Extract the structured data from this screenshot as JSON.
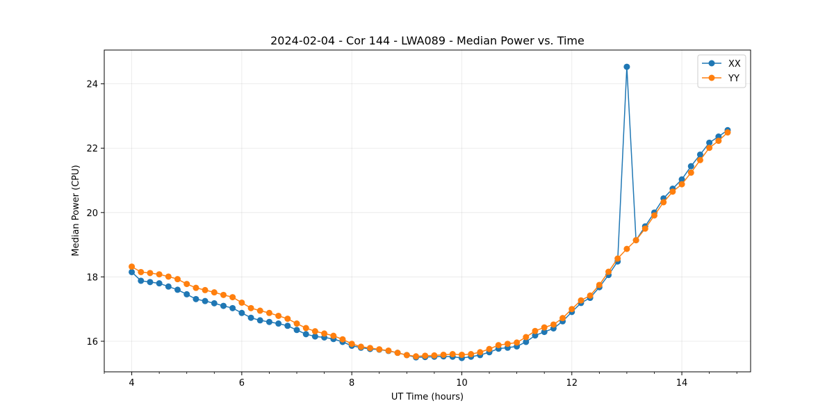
{
  "chart_data": {
    "type": "line",
    "title": "2024-02-04 - Cor 144 - LWA089 - Median Power vs. Time",
    "xlabel": "UT Time (hours)",
    "ylabel": "Median Power (CPU)",
    "xlim": [
      3.5,
      15.25
    ],
    "ylim": [
      15.05,
      25.05
    ],
    "xticks": [
      4,
      6,
      8,
      10,
      12,
      14
    ],
    "yticks": [
      16,
      18,
      20,
      22,
      24
    ],
    "grid": true,
    "legend_position": "top-right",
    "x": [
      4.0,
      4.167,
      4.333,
      4.5,
      4.667,
      4.833,
      5.0,
      5.167,
      5.333,
      5.5,
      5.667,
      5.833,
      6.0,
      6.167,
      6.333,
      6.5,
      6.667,
      6.833,
      7.0,
      7.167,
      7.333,
      7.5,
      7.667,
      7.833,
      8.0,
      8.167,
      8.333,
      8.5,
      8.667,
      8.833,
      9.0,
      9.167,
      9.333,
      9.5,
      9.667,
      9.833,
      10.0,
      10.167,
      10.333,
      10.5,
      10.667,
      10.833,
      11.0,
      11.167,
      11.333,
      11.5,
      11.667,
      11.833,
      12.0,
      12.167,
      12.333,
      12.5,
      12.667,
      12.833,
      13.0,
      13.167,
      13.333,
      13.5,
      13.667,
      13.833,
      14.0,
      14.167,
      14.333,
      14.5,
      14.667,
      14.833
    ],
    "series": [
      {
        "name": "XX",
        "color": "#1f77b4",
        "values": [
          18.15,
          17.88,
          17.84,
          17.8,
          17.7,
          17.6,
          17.46,
          17.31,
          17.25,
          17.18,
          17.1,
          17.03,
          16.88,
          16.73,
          16.65,
          16.6,
          16.55,
          16.48,
          16.35,
          16.22,
          16.15,
          16.12,
          16.07,
          15.98,
          15.86,
          15.8,
          15.76,
          15.74,
          15.7,
          15.64,
          15.57,
          15.5,
          15.51,
          15.52,
          15.53,
          15.52,
          15.48,
          15.52,
          15.57,
          15.66,
          15.77,
          15.8,
          15.84,
          15.98,
          16.18,
          16.29,
          16.4,
          16.62,
          16.91,
          17.19,
          17.35,
          17.68,
          18.06,
          18.48,
          24.53,
          19.14,
          19.57,
          20.0,
          20.44,
          20.74,
          21.03,
          21.44,
          21.8,
          22.17,
          22.36,
          22.56
        ]
      },
      {
        "name": "YY",
        "color": "#ff7f0e",
        "values": [
          18.32,
          18.15,
          18.12,
          18.08,
          18.01,
          17.93,
          17.78,
          17.66,
          17.59,
          17.52,
          17.44,
          17.37,
          17.2,
          17.03,
          16.95,
          16.88,
          16.79,
          16.7,
          16.55,
          16.41,
          16.31,
          16.24,
          16.17,
          16.06,
          15.92,
          15.83,
          15.79,
          15.75,
          15.71,
          15.64,
          15.57,
          15.53,
          15.55,
          15.56,
          15.58,
          15.6,
          15.58,
          15.6,
          15.66,
          15.76,
          15.88,
          15.92,
          15.96,
          16.13,
          16.32,
          16.43,
          16.52,
          16.72,
          17.0,
          17.27,
          17.42,
          17.75,
          18.16,
          18.57,
          18.87,
          19.14,
          19.5,
          19.91,
          20.32,
          20.65,
          20.88,
          21.24,
          21.63,
          22.01,
          22.23,
          22.49
        ]
      }
    ]
  }
}
